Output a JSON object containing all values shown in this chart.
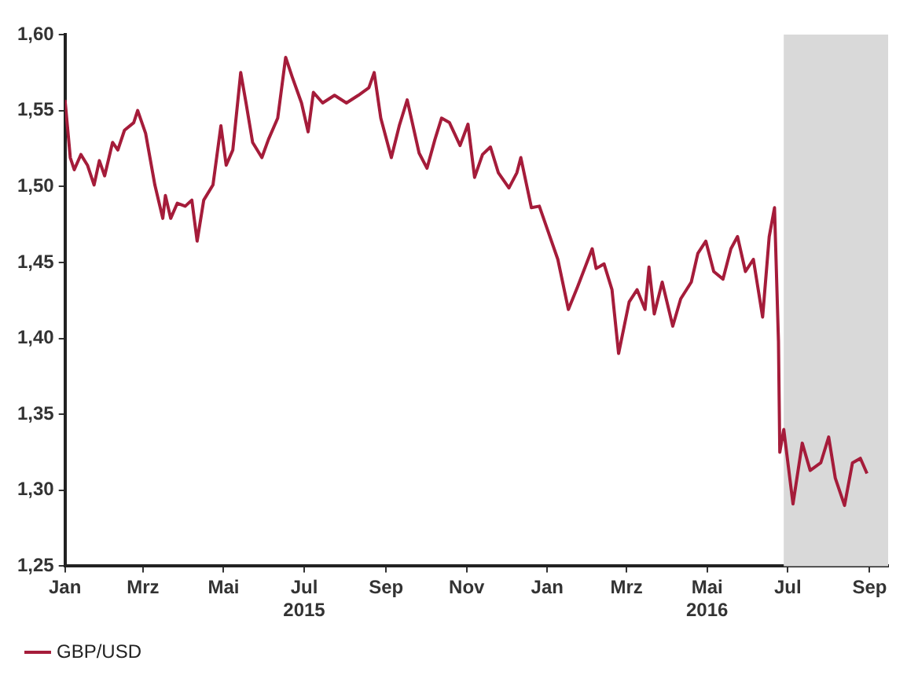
{
  "chart_data": {
    "type": "line",
    "x": [
      "2015-01-01",
      "2015-01-05",
      "2015-01-08",
      "2015-01-13",
      "2015-01-18",
      "2015-01-23",
      "2015-01-27",
      "2015-01-31",
      "2015-02-06",
      "2015-02-10",
      "2015-02-15",
      "2015-02-22",
      "2015-02-25",
      "2015-03-03",
      "2015-03-10",
      "2015-03-16",
      "2015-03-18",
      "2015-03-22",
      "2015-03-27",
      "2015-04-02",
      "2015-04-07",
      "2015-04-11",
      "2015-04-16",
      "2015-04-23",
      "2015-04-29",
      "2015-05-03",
      "2015-05-08",
      "2015-05-14",
      "2015-05-18",
      "2015-05-23",
      "2015-05-30",
      "2015-06-04",
      "2015-06-11",
      "2015-06-17",
      "2015-06-22",
      "2015-06-29",
      "2015-07-04",
      "2015-07-08",
      "2015-07-15",
      "2015-07-24",
      "2015-08-02",
      "2015-08-11",
      "2015-08-19",
      "2015-08-23",
      "2015-08-28",
      "2015-09-05",
      "2015-09-11",
      "2015-09-17",
      "2015-09-26",
      "2015-10-02",
      "2015-10-08",
      "2015-10-13",
      "2015-10-19",
      "2015-10-27",
      "2015-11-02",
      "2015-11-07",
      "2015-11-13",
      "2015-11-19",
      "2015-11-25",
      "2015-12-03",
      "2015-12-09",
      "2015-12-12",
      "2015-12-20",
      "2015-12-26",
      "2016-01-01",
      "2016-01-09",
      "2016-01-17",
      "2016-01-24",
      "2016-02-04",
      "2016-02-07",
      "2016-02-13",
      "2016-02-19",
      "2016-02-24",
      "2016-03-03",
      "2016-03-09",
      "2016-03-15",
      "2016-03-18",
      "2016-03-22",
      "2016-03-28",
      "2016-04-05",
      "2016-04-11",
      "2016-04-19",
      "2016-04-24",
      "2016-04-30",
      "2016-05-06",
      "2016-05-13",
      "2016-05-19",
      "2016-05-24",
      "2016-05-30",
      "2016-06-05",
      "2016-06-12",
      "2016-06-17",
      "2016-06-21",
      "2016-06-24",
      "2016-06-25",
      "2016-06-28",
      "2016-07-05",
      "2016-07-12",
      "2016-07-18",
      "2016-07-26",
      "2016-08-01",
      "2016-08-06",
      "2016-08-13",
      "2016-08-19",
      "2016-08-25",
      "2016-08-30"
    ],
    "series": [
      {
        "name": "GBP/USD",
        "color": "#a51c3a",
        "values": [
          1.557,
          1.519,
          1.511,
          1.521,
          1.514,
          1.501,
          1.517,
          1.507,
          1.529,
          1.524,
          1.537,
          1.542,
          1.55,
          1.535,
          1.501,
          1.479,
          1.494,
          1.479,
          1.489,
          1.487,
          1.491,
          1.464,
          1.491,
          1.501,
          1.54,
          1.514,
          1.524,
          1.575,
          1.555,
          1.529,
          1.519,
          1.531,
          1.545,
          1.585,
          1.572,
          1.555,
          1.536,
          1.562,
          1.555,
          1.56,
          1.555,
          1.56,
          1.565,
          1.575,
          1.545,
          1.519,
          1.54,
          1.557,
          1.522,
          1.512,
          1.531,
          1.545,
          1.542,
          1.527,
          1.541,
          1.506,
          1.521,
          1.526,
          1.509,
          1.499,
          1.509,
          1.519,
          1.486,
          1.487,
          1.472,
          1.452,
          1.419,
          1.434,
          1.459,
          1.446,
          1.449,
          1.432,
          1.39,
          1.424,
          1.432,
          1.419,
          1.447,
          1.416,
          1.437,
          1.408,
          1.426,
          1.437,
          1.456,
          1.464,
          1.444,
          1.439,
          1.459,
          1.467,
          1.444,
          1.452,
          1.414,
          1.467,
          1.486,
          1.398,
          1.325,
          1.34,
          1.291,
          1.331,
          1.313,
          1.318,
          1.335,
          1.308,
          1.29,
          1.318,
          1.321,
          1.311
        ]
      }
    ],
    "xlim": [
      "2015-01-01",
      "2016-09-15"
    ],
    "xticks": [
      {
        "value": "2015-01-01",
        "label": "Jan"
      },
      {
        "value": "2015-03-01",
        "label": "Mrz"
      },
      {
        "value": "2015-05-01",
        "label": "Mai"
      },
      {
        "value": "2015-07-01",
        "label": "Jul\n2015"
      },
      {
        "value": "2015-09-01",
        "label": "Sep"
      },
      {
        "value": "2015-11-01",
        "label": "Nov"
      },
      {
        "value": "2016-01-01",
        "label": "Jan"
      },
      {
        "value": "2016-03-01",
        "label": "Mrz"
      },
      {
        "value": "2016-05-01",
        "label": "Mai\n2016"
      },
      {
        "value": "2016-07-01",
        "label": "Jul"
      },
      {
        "value": "2016-09-01",
        "label": "Sep"
      }
    ],
    "ylim": [
      1.25,
      1.6
    ],
    "yticks": [
      {
        "value": 1.25,
        "label": "1,25"
      },
      {
        "value": 1.3,
        "label": "1,30"
      },
      {
        "value": 1.35,
        "label": "1,35"
      },
      {
        "value": 1.4,
        "label": "1,40"
      },
      {
        "value": 1.45,
        "label": "1,45"
      },
      {
        "value": 1.5,
        "label": "1,50"
      },
      {
        "value": 1.55,
        "label": "1,55"
      },
      {
        "value": 1.6,
        "label": "1,60"
      }
    ],
    "bands": [
      {
        "axis": "x",
        "from": "2016-06-28",
        "to": "2016-09-15",
        "color": "#d9d9d9"
      }
    ],
    "grid": false,
    "legend": "bottom left",
    "marker": "none",
    "line_style": "solid"
  }
}
